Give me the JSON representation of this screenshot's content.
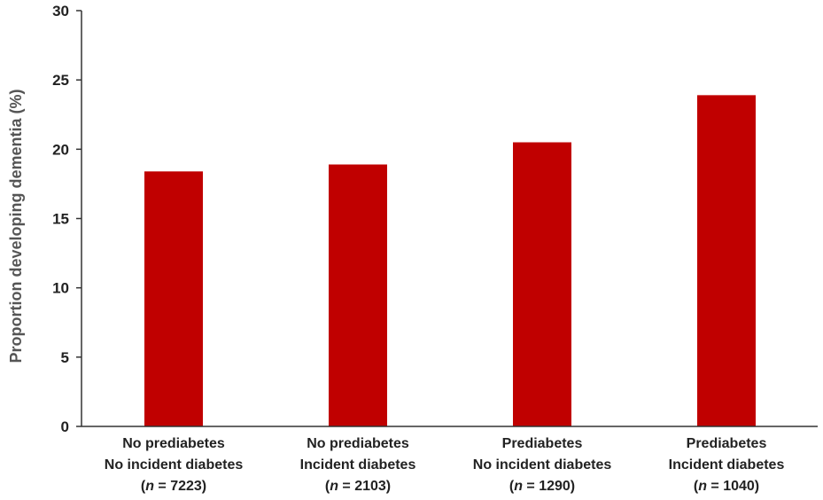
{
  "chart_data": {
    "type": "bar",
    "categories": [
      {
        "line1": "No prediabetes",
        "line2": "No incident diabetes",
        "n_prefix": "(",
        "n_italic": "n",
        "n_suffix": " = 7223)"
      },
      {
        "line1": "No prediabetes",
        "line2": "Incident diabetes",
        "n_prefix": "(",
        "n_italic": "n",
        "n_suffix": " = 2103)"
      },
      {
        "line1": "Prediabetes",
        "line2": "No incident diabetes",
        "n_prefix": "(",
        "n_italic": "n",
        "n_suffix": " = 1290)"
      },
      {
        "line1": "Prediabetes",
        "line2": "Incident diabetes",
        "n_prefix": "(",
        "n_italic": "n",
        "n_suffix": " = 1040)"
      }
    ],
    "values": [
      18.4,
      18.9,
      20.5,
      23.9
    ],
    "ylabel": "Proportion developing dementia (%)",
    "xlabel": "",
    "ylim": [
      0,
      30
    ],
    "yticks": [
      "0",
      "5",
      "10",
      "15",
      "20",
      "25",
      "30"
    ],
    "bar_color": "#c00000",
    "grid": false,
    "legend": "none"
  }
}
